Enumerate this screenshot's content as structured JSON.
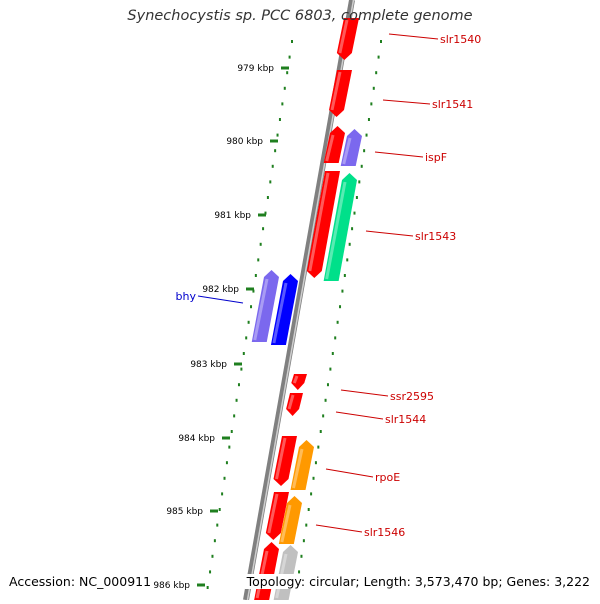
{
  "title": "Synechocystis sp. PCC 6803, complete genome",
  "accession": "Accession: NC_000911",
  "topology": "Topology: circular; Length: 3,573,470 bp; Genes: 3,222",
  "colors": {
    "genome_line": "#808080",
    "tick": "#1f7f1f",
    "label_red": "#cc0000",
    "label_blue": "#0000cc",
    "red": "#ff0000",
    "blue": "#0000ff",
    "slate": "#7b68ee",
    "green": "#00e08a",
    "orange": "#ff9900",
    "gray": "#c0c0c0"
  },
  "kbp_labels": [
    "979 kbp",
    "980 kbp",
    "981 kbp",
    "982 kbp",
    "983 kbp",
    "984 kbp",
    "985 kbp",
    "986 kbp"
  ],
  "gene_labels": [
    {
      "text": "slr1540",
      "color": "red"
    },
    {
      "text": "slr1541",
      "color": "red"
    },
    {
      "text": "ispF",
      "color": "red"
    },
    {
      "text": "slr1543",
      "color": "red"
    },
    {
      "text": "bhy",
      "color": "blue"
    },
    {
      "text": "ssr2595",
      "color": "red"
    },
    {
      "text": "slr1544",
      "color": "red"
    },
    {
      "text": "rpoE",
      "color": "red"
    },
    {
      "text": "slr1546",
      "color": "red"
    }
  ]
}
